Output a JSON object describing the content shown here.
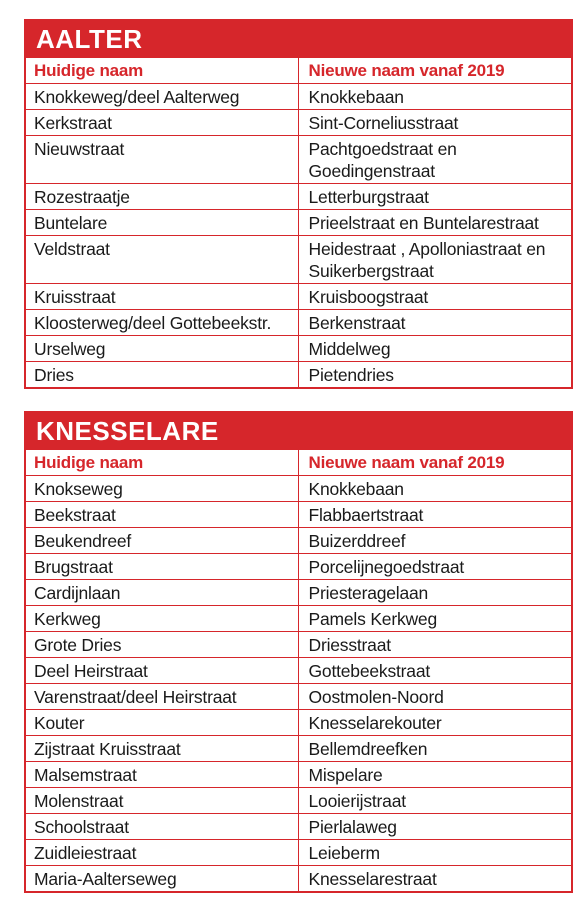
{
  "sections": [
    {
      "title": "AALTER",
      "headers": [
        "Huidige naam",
        "Nieuwe naam vanaf 2019"
      ],
      "rows": [
        [
          "Knokkeweg/deel Aalterweg",
          "Knokkebaan"
        ],
        [
          "Kerkstraat",
          "Sint-Corneliusstraat"
        ],
        [
          "Nieuwstraat",
          "Pachtgoedstraat en Goedingenstraat"
        ],
        [
          "Rozestraatje",
          "Letterburgstraat"
        ],
        [
          "Buntelare",
          "Prieelstraat en Buntelarestraat"
        ],
        [
          "Veldstraat",
          "Heidestraat , Apolloniastraat en Suikerbergstraat"
        ],
        [
          "Kruisstraat",
          "Kruisboogstraat"
        ],
        [
          "Kloosterweg/deel Gottebeekstr.",
          "Berkenstraat"
        ],
        [
          "Urselweg",
          "Middelweg"
        ],
        [
          "Dries",
          "Pietendries"
        ]
      ]
    },
    {
      "title": "KNESSELARE",
      "headers": [
        "Huidige naam",
        "Nieuwe naam vanaf 2019"
      ],
      "rows": [
        [
          "Knokseweg",
          "Knokkebaan"
        ],
        [
          "Beekstraat",
          "Flabbaertstraat"
        ],
        [
          "Beukendreef",
          "Buizerddreef"
        ],
        [
          "Brugstraat",
          "Porcelijnegoedstraat"
        ],
        [
          "Cardijnlaan",
          "Priesteragelaan"
        ],
        [
          "Kerkweg",
          "Pamels Kerkweg"
        ],
        [
          "Grote Dries",
          "Driesstraat"
        ],
        [
          "Deel Heirstraat",
          "Gottebeekstraat"
        ],
        [
          "Varenstraat/deel Heirstraat",
          "Oostmolen-Noord"
        ],
        [
          "Kouter",
          "Knesselarekouter"
        ],
        [
          "Zijstraat Kruisstraat",
          "Bellemdreefken"
        ],
        [
          "Malsemstraat",
          "Mispelare"
        ],
        [
          "Molenstraat",
          "Looierijstraat"
        ],
        [
          "Schoolstraat",
          "Pierlalaweg"
        ],
        [
          "Zuidleiestraat",
          "Leieberm"
        ],
        [
          "Maria-Aalterseweg",
          "Knesselarestraat"
        ]
      ]
    }
  ],
  "colors": {
    "accent": "#d6262b",
    "text": "#1a1a1a"
  }
}
